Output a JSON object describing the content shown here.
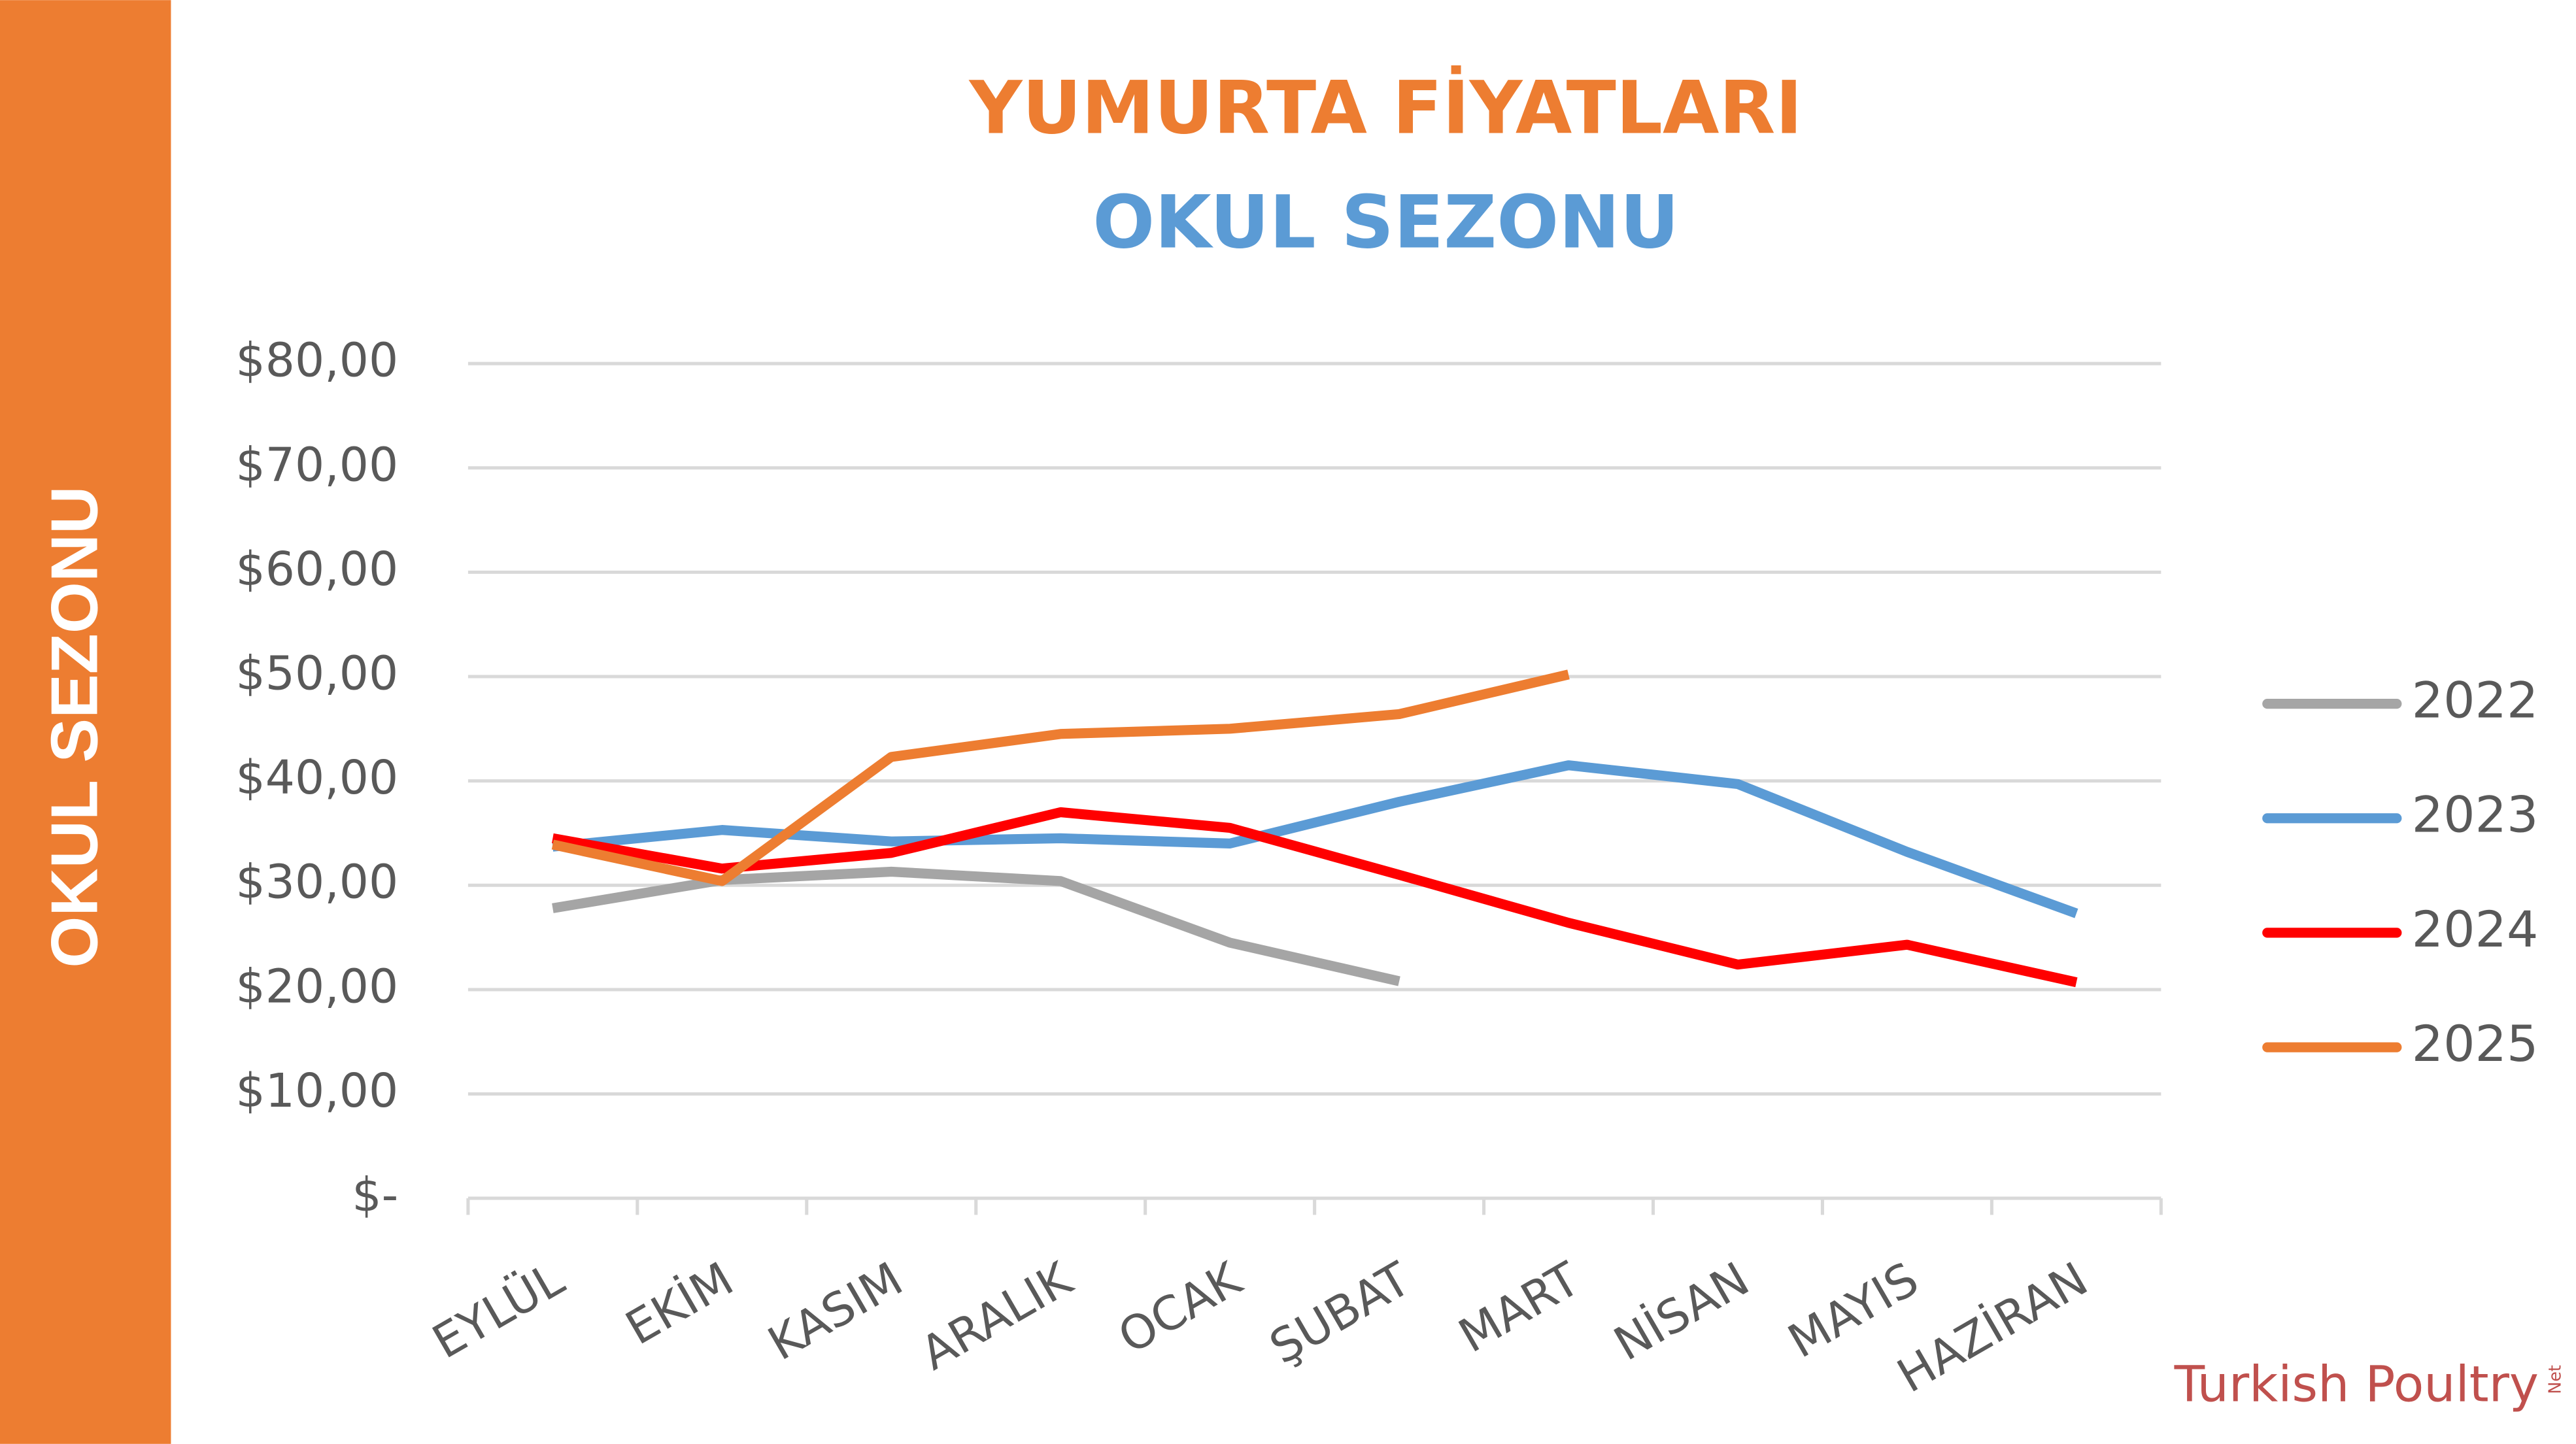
{
  "side_label": "OKUL SEZONU",
  "logo": {
    "text": "Turkish Poultry",
    "suffix": "Net"
  },
  "chart_data": {
    "type": "line",
    "title": "YUMURTA FİYATLARI",
    "subtitle": "OKUL SEZONU",
    "categories": [
      "EYLÜL",
      "EKİM",
      "KASIM",
      "ARALIK",
      "OCAK",
      "ŞUBAT",
      "MART",
      "NİSAN",
      "MAYIS",
      "HAZİRAN"
    ],
    "series": [
      {
        "name": "2022",
        "color": "#a5a5a5",
        "values": [
          27.8,
          30.5,
          31.3,
          30.4,
          24.5,
          20.8,
          null,
          null,
          null,
          null
        ]
      },
      {
        "name": "2023",
        "color": "#5b9bd5",
        "values": [
          33.7,
          35.3,
          34.2,
          34.5,
          34.0,
          38.0,
          41.5,
          39.7,
          33.2,
          27.3
        ]
      },
      {
        "name": "2024",
        "color": "#ff0000",
        "values": [
          34.5,
          31.6,
          33.1,
          37.0,
          35.5,
          31.0,
          26.4,
          22.4,
          24.3,
          20.7
        ]
      },
      {
        "name": "2025",
        "color": "#ed7d31",
        "values": [
          33.9,
          30.4,
          42.3,
          44.5,
          45.0,
          46.4,
          50.2,
          null,
          null,
          null
        ]
      }
    ],
    "ylim": [
      0,
      80
    ],
    "yticks": [
      {
        "value": 0,
        "label": "$-"
      },
      {
        "value": 10,
        "label": "$10,00"
      },
      {
        "value": 20,
        "label": "$20,00"
      },
      {
        "value": 30,
        "label": "$30,00"
      },
      {
        "value": 40,
        "label": "$40,00"
      },
      {
        "value": 50,
        "label": "$50,00"
      },
      {
        "value": 60,
        "label": "$60,00"
      },
      {
        "value": 70,
        "label": "$70,00"
      },
      {
        "value": 80,
        "label": "$80,00"
      }
    ],
    "grid": true,
    "legend": "right"
  }
}
